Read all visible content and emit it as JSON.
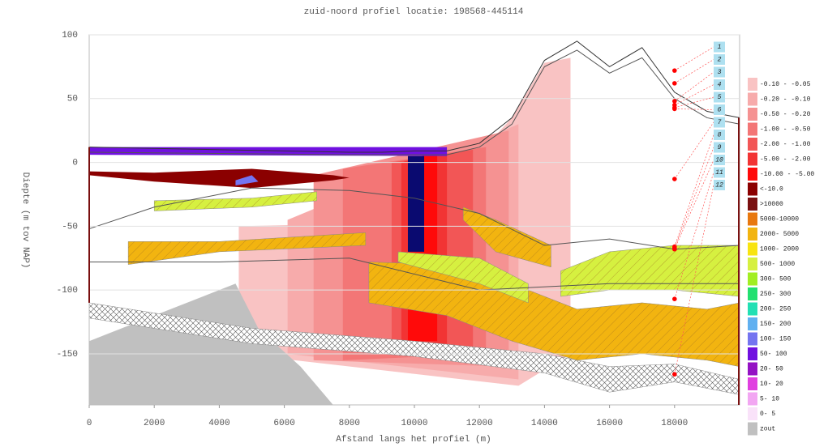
{
  "chart_data": {
    "type": "profile",
    "title": "zuid-noord profiel locatie: 198568-445114",
    "x_label": "Afstand langs het profiel (m)",
    "y_label": "Diepte (m tov NAP)",
    "xlim": [
      0,
      20000
    ],
    "ylim": [
      -190,
      100
    ],
    "xticks": [
      0,
      2000,
      4000,
      6000,
      8000,
      10000,
      12000,
      14000,
      16000,
      18000
    ],
    "yticks": [
      100,
      50,
      0,
      -50,
      -100,
      -150
    ],
    "grid": true,
    "legend": [
      {
        "label": "-0.10 - -0.05",
        "color": "#f9c3c3"
      },
      {
        "label": "-0.20 - -0.10",
        "color": "#f7abab"
      },
      {
        "label": "-0.50 - -0.20",
        "color": "#f59292"
      },
      {
        "label": "-1.00 - -0.50",
        "color": "#f37676"
      },
      {
        "label": "-2.00 - -1.00",
        "color": "#f25656"
      },
      {
        "label": "-5.00 - -2.00",
        "color": "#f23434"
      },
      {
        "label": "-10.00 - -5.00",
        "color": "#ff0a0a"
      },
      {
        "label": "<-10.0",
        "color": "#8b0000"
      },
      {
        "label": ">10000",
        "color": "#7a1010"
      },
      {
        "label": "5000-10000",
        "color": "#e8780f"
      },
      {
        "label": "2000- 5000",
        "color": "#f2b410"
      },
      {
        "label": "1000- 2000",
        "color": "#f8e410"
      },
      {
        "label": "500- 1000",
        "color": "#d6f040"
      },
      {
        "label": "300- 500",
        "color": "#a2ee22"
      },
      {
        "label": "250- 300",
        "color": "#22e070"
      },
      {
        "label": "200- 250",
        "color": "#22e0b4"
      },
      {
        "label": "150- 200",
        "color": "#60b0f0"
      },
      {
        "label": "100- 150",
        "color": "#7474f0"
      },
      {
        "label": "50- 100",
        "color": "#7010e0"
      },
      {
        "label": "20- 50",
        "color": "#9412c4"
      },
      {
        "label": "10- 20",
        "color": "#e040e0"
      },
      {
        "label": "5- 10",
        "color": "#f2a6f2"
      },
      {
        "label": "0- 5",
        "color": "#f9e2f9"
      },
      {
        "label": "zout",
        "color": "#c0c0c0"
      }
    ],
    "regions": [
      {
        "color": "#f9c3c3",
        "x": [
          4600,
          8000,
          11000,
          13000,
          14000,
          14800,
          14800,
          13200,
          4600
        ],
        "y": [
          -50,
          -48,
          -20,
          35,
          78,
          82,
          -150,
          -175,
          -150
        ]
      },
      {
        "color": "#f7abab",
        "x": [
          6100,
          13200,
          13200,
          6100
        ],
        "y": [
          -45,
          30,
          -170,
          -150
        ]
      },
      {
        "color": "#f59292",
        "x": [
          6900,
          12900,
          12900,
          6900
        ],
        "y": [
          -10,
          25,
          -160,
          -155
        ]
      },
      {
        "color": "#f37676",
        "x": [
          7800,
          12200,
          12200,
          7800
        ],
        "y": [
          -5,
          12,
          -150,
          -155
        ]
      },
      {
        "color": "#f25656",
        "x": [
          9300,
          11800,
          11800,
          9300
        ],
        "y": [
          0,
          10,
          -150,
          -150
        ]
      },
      {
        "color": "#f23434",
        "x": [
          9600,
          11000,
          11000,
          9600
        ],
        "y": [
          0,
          10,
          -145,
          -145
        ]
      },
      {
        "color": "#ff0a0a",
        "x": [
          9800,
          10700,
          10700,
          9800
        ],
        "y": [
          2,
          8,
          -140,
          -140
        ]
      },
      {
        "color": "#0a0a70",
        "x": [
          9800,
          10300,
          10300,
          9800
        ],
        "y": [
          5,
          5,
          -70,
          -70
        ]
      },
      {
        "color": "#c0c0c0",
        "x": [
          0,
          4500,
          5200,
          6500,
          7500,
          0
        ],
        "y": [
          -140,
          -95,
          -130,
          -160,
          -190,
          -190
        ]
      },
      {
        "color": "#ffffff",
        "hatch": "cross",
        "x": [
          0,
          5000,
          10000,
          14000,
          16000,
          18000,
          20000,
          20000,
          18000,
          16000,
          14000,
          10000,
          5000,
          0
        ],
        "y": [
          -110,
          -130,
          -140,
          -150,
          -160,
          -158,
          -170,
          -182,
          -172,
          -180,
          -165,
          -152,
          -142,
          -122
        ]
      },
      {
        "color": "#7010e0",
        "x": [
          0,
          11000,
          11000,
          0
        ],
        "y": [
          12,
          12,
          5,
          6
        ]
      },
      {
        "color": "#8b0000",
        "x": [
          0,
          2000,
          5000,
          7500,
          8000,
          7500,
          5000,
          2000,
          0
        ],
        "y": [
          -7,
          -8,
          -5,
          -10,
          -12,
          -14,
          -20,
          -15,
          -10
        ]
      },
      {
        "color": "#7474f0",
        "x": [
          4500,
          5000,
          5200,
          4500
        ],
        "y": [
          -14,
          -10,
          -15,
          -18
        ]
      },
      {
        "color": "#d6f040",
        "hatch": "diag",
        "x": [
          2000,
          5000,
          7000,
          7000,
          5000,
          2000
        ],
        "y": [
          -30,
          -28,
          -23,
          -30,
          -35,
          -38
        ]
      },
      {
        "color": "#f2b410",
        "hatch": "diag",
        "x": [
          1200,
          4000,
          8500,
          8500,
          4000,
          1200
        ],
        "y": [
          -62,
          -62,
          -55,
          -65,
          -70,
          -80
        ]
      },
      {
        "color": "#f2b410",
        "hatch": "diag",
        "x": [
          8600,
          11000,
          13000,
          15000,
          17000,
          19000,
          20000,
          20000,
          19000,
          17000,
          15000,
          13000,
          11000,
          8600
        ],
        "y": [
          -78,
          -80,
          -95,
          -115,
          -110,
          -115,
          -110,
          -160,
          -155,
          -150,
          -155,
          -140,
          -120,
          -110
        ]
      },
      {
        "color": "#d6f040",
        "hatch": "diag",
        "x": [
          14500,
          16000,
          18000,
          20000,
          20000,
          18000,
          16000,
          14500
        ],
        "y": [
          -85,
          -70,
          -65,
          -65,
          -105,
          -100,
          -100,
          -105
        ]
      },
      {
        "color": "#f2b410",
        "hatch": "diag",
        "x": [
          11500,
          12500,
          14200,
          14200,
          12500,
          11500
        ],
        "y": [
          -35,
          -45,
          -65,
          -82,
          -70,
          -45
        ]
      },
      {
        "color": "#d6f040",
        "hatch": "diag",
        "x": [
          9500,
          12000,
          13500,
          13500,
          12000,
          9500
        ],
        "y": [
          -70,
          -75,
          -95,
          -110,
          -95,
          -78
        ]
      }
    ],
    "lines": [
      {
        "color": "#333333",
        "x": [
          0,
          2000,
          4000,
          6000,
          8000,
          9000,
          10000,
          11000,
          12000,
          13000,
          14000,
          15000,
          16000,
          17000,
          18000,
          19000,
          20000
        ],
        "y": [
          12,
          11,
          10,
          9,
          8,
          8,
          9,
          9,
          15,
          35,
          80,
          95,
          75,
          90,
          55,
          40,
          35
        ]
      },
      {
        "color": "#555555",
        "x": [
          0,
          4000,
          8000,
          11000,
          12000,
          13000,
          14000,
          15000,
          16000,
          17000,
          18000,
          19000,
          20000
        ],
        "y": [
          8,
          7,
          6,
          6,
          12,
          30,
          75,
          88,
          70,
          82,
          50,
          35,
          30
        ]
      },
      {
        "color": "#555555",
        "x": [
          0,
          2000,
          5000,
          8000,
          10000,
          12000,
          14000,
          16000,
          18000,
          20000
        ],
        "y": [
          -52,
          -35,
          -20,
          -22,
          -28,
          -40,
          -65,
          -60,
          -68,
          -65
        ]
      },
      {
        "color": "#555555",
        "x": [
          0,
          4000,
          8000,
          12000,
          16000,
          20000
        ],
        "y": [
          -78,
          -78,
          -75,
          -100,
          -95,
          -95
        ]
      }
    ],
    "marker_x": 18000,
    "markers": [
      {
        "label": "1",
        "y": 72
      },
      {
        "label": "2",
        "y": 62
      },
      {
        "label": "3",
        "y": 48
      },
      {
        "label": "4",
        "y": 45
      },
      {
        "label": "5",
        "y": 43
      },
      {
        "label": "6",
        "y": 42
      },
      {
        "label": "7",
        "y": -13
      },
      {
        "label": "8",
        "y": -66
      },
      {
        "label": "9",
        "y": -67
      },
      {
        "label": "10",
        "y": -68
      },
      {
        "label": "11",
        "y": -107
      },
      {
        "label": "12",
        "y": -166
      }
    ]
  }
}
